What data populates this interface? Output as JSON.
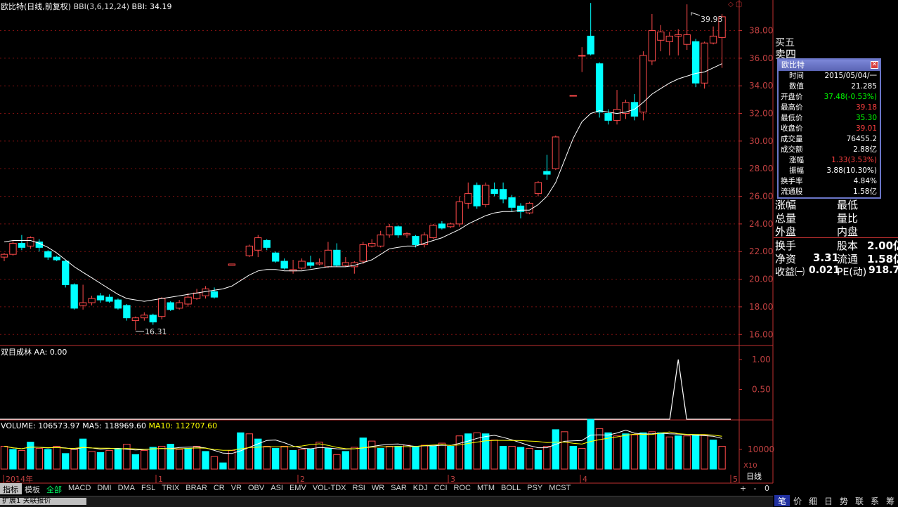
{
  "header": {
    "stock_name": "欧比特",
    "period": "(日线,前复权)",
    "indicator": "BBI(3,6,12,24)",
    "indicator_value": "BBI: 34.19"
  },
  "colors": {
    "up": "#ff4a4a",
    "down": "#00ffff",
    "grid": "#7a1010",
    "axis": "#c03030",
    "line": "#ffffff",
    "ma10": "#ffff00"
  },
  "price_chart": {
    "y_ticks": [
      "16.00",
      "18.00",
      "20.00",
      "22.00",
      "24.00",
      "26.00",
      "28.00",
      "30.00",
      "32.00",
      "34.00",
      "36.00",
      "38.00"
    ],
    "y_range": [
      15.2,
      39.4
    ],
    "high_label": "39.93",
    "low_label": "16.31"
  },
  "aa_panel": {
    "title": "双目成林",
    "value": "AA: 0.00",
    "y_ticks": [
      "1.00",
      "0.50"
    ]
  },
  "volume_panel": {
    "volume": "VOLUME: 106573.97",
    "ma5": "MA5: 118969.60",
    "ma10": "MA10: 112707.60",
    "y_tick": "10000",
    "unit": "X10"
  },
  "x_axis": {
    "labels": [
      "2014年",
      "1",
      "2",
      "3",
      "4",
      "5"
    ],
    "period_label": "日线"
  },
  "tabs": [
    "指标",
    "模板",
    "全部",
    "MACD",
    "DMI",
    "DMA",
    "FSL",
    "TRIX",
    "BRAR",
    "CR",
    "VR",
    "OBV",
    "ASI",
    "EMV",
    "VOL-TDX",
    "RSI",
    "WR",
    "SAR",
    "KDJ",
    "CCI",
    "ROC",
    "MTM",
    "BOLL",
    "PSY",
    "MCST"
  ],
  "zoom_buttons": [
    "+",
    "-",
    "0"
  ],
  "bottom_tabs": [
    "笔",
    "价",
    "细",
    "日",
    "势",
    "联",
    "系",
    "筹"
  ],
  "status_left": "扩展1",
  "status_left2": "关联报价",
  "right_panel": {
    "partial_top1": "买五",
    "partial_top2": "卖四",
    "rows": [
      {
        "l": "涨幅",
        "r": "最低"
      },
      {
        "l": "总量",
        "r": "量比"
      },
      {
        "l": "外盘",
        "r": "内盘"
      }
    ],
    "huanshou": {
      "l": "换手",
      "r_label": "股本",
      "r_val": "2.00亿"
    },
    "jingzi": {
      "l": "净资",
      "l_val": "3.31",
      "r_label": "流通",
      "r_val": "1.58亿"
    },
    "shouyi": {
      "l": "收益㈠",
      "l_val": "0.021",
      "r_label": "PE(动)",
      "r_val": "918.7"
    }
  },
  "popup": {
    "title": "欧比特",
    "rows": [
      {
        "label": "时间",
        "value": "2015/05/04/一",
        "color": "#ffffff"
      },
      {
        "label": "数值",
        "value": "21.285",
        "color": "#ffffff"
      },
      {
        "label": "开盘价",
        "value": "37.48(-0.53%)",
        "color": "#00ff00"
      },
      {
        "label": "最高价",
        "value": "39.18",
        "color": "#ff4040"
      },
      {
        "label": "最低价",
        "value": "35.30",
        "color": "#00ff00"
      },
      {
        "label": "收盘价",
        "value": "39.01",
        "color": "#ff4040"
      },
      {
        "label": "成交量",
        "value": "76455.2",
        "color": "#ffffff"
      },
      {
        "label": "成交额",
        "value": "2.88亿",
        "color": "#ffffff"
      },
      {
        "label": "涨幅",
        "value": "1.33(3.53%)",
        "color": "#ff4040"
      },
      {
        "label": "振幅",
        "value": "3.88(10.30%)",
        "color": "#ffffff"
      },
      {
        "label": "换手率",
        "value": "4.84%",
        "color": "#ffffff"
      },
      {
        "label": "流通股",
        "value": "1.58亿",
        "color": "#ffffff"
      }
    ]
  },
  "chart_data": {
    "type": "candlestick",
    "candles": [
      [
        21.6,
        21.8,
        21.3,
        21.9
      ],
      [
        21.8,
        22.6,
        21.7,
        22.8
      ],
      [
        22.6,
        22.3,
        22.1,
        23.2
      ],
      [
        22.4,
        23.0,
        22.2,
        23.1
      ],
      [
        22.7,
        22.3,
        22.0,
        22.9
      ],
      [
        22.0,
        21.6,
        21.4,
        22.1
      ],
      [
        21.6,
        21.4,
        21.3,
        21.7
      ],
      [
        21.3,
        19.6,
        19.4,
        21.4
      ],
      [
        19.6,
        17.9,
        17.8,
        19.7
      ],
      [
        18.1,
        18.3,
        17.8,
        19.6
      ],
      [
        18.3,
        18.6,
        18.1,
        18.8
      ],
      [
        18.8,
        18.5,
        18.3,
        19.0
      ],
      [
        18.7,
        18.4,
        18.3,
        18.9
      ],
      [
        18.5,
        17.9,
        17.8,
        18.6
      ],
      [
        18.1,
        17.2,
        17.0,
        18.2
      ],
      [
        17.0,
        17.2,
        16.3,
        17.3
      ],
      [
        17.2,
        17.4,
        17.0,
        17.6
      ],
      [
        17.4,
        16.9,
        16.7,
        17.5
      ],
      [
        17.3,
        18.6,
        17.1,
        18.7
      ],
      [
        18.3,
        17.8,
        17.7,
        18.4
      ],
      [
        17.9,
        18.3,
        17.8,
        18.5
      ],
      [
        18.2,
        18.7,
        18.0,
        19.0
      ],
      [
        18.6,
        19.0,
        18.5,
        19.3
      ],
      [
        18.8,
        19.3,
        18.6,
        19.5
      ],
      [
        19.1,
        18.7,
        18.6,
        19.4
      ],
      [
        null,
        null,
        null,
        null
      ],
      [
        21.0,
        21.1,
        21.0,
        21.1
      ],
      [
        null,
        null,
        null,
        null
      ],
      [
        21.7,
        22.4,
        21.6,
        22.5
      ],
      [
        22.1,
        23.0,
        21.6,
        23.2
      ],
      [
        22.8,
        22.3,
        22.1,
        22.9
      ],
      [
        21.9,
        21.3,
        21.2,
        22.0
      ],
      [
        21.3,
        20.8,
        20.7,
        21.5
      ],
      [
        20.6,
        20.7,
        20.4,
        21.4
      ],
      [
        20.8,
        21.3,
        20.7,
        21.5
      ],
      [
        21.2,
        21.0,
        20.8,
        21.7
      ],
      [
        21.1,
        21.2,
        21.0,
        21.5
      ],
      [
        20.9,
        22.1,
        20.8,
        22.7
      ],
      [
        22.1,
        21.0,
        20.9,
        22.6
      ],
      [
        21.0,
        21.2,
        20.9,
        21.6
      ],
      [
        20.9,
        21.2,
        20.4,
        21.3
      ],
      [
        21.3,
        22.5,
        21.1,
        22.7
      ],
      [
        22.4,
        22.6,
        22.3,
        22.9
      ],
      [
        22.4,
        23.2,
        22.3,
        23.5
      ],
      [
        23.2,
        23.8,
        23.0,
        24.0
      ],
      [
        23.8,
        23.2,
        23.0,
        23.9
      ],
      [
        23.2,
        23.3,
        23.0,
        23.4
      ],
      [
        23.1,
        22.5,
        22.3,
        23.2
      ],
      [
        22.5,
        23.2,
        22.3,
        23.4
      ],
      [
        23.0,
        23.9,
        22.9,
        24.0
      ],
      [
        24.0,
        23.7,
        23.6,
        24.2
      ],
      [
        23.8,
        24.0,
        23.7,
        24.1
      ],
      [
        24.0,
        25.6,
        23.8,
        26.0
      ],
      [
        25.5,
        26.2,
        25.1,
        27.0
      ],
      [
        26.8,
        25.3,
        25.1,
        27.0
      ],
      [
        25.4,
        26.8,
        25.2,
        27.0
      ],
      [
        26.5,
        26.2,
        26.0,
        27.0
      ],
      [
        26.5,
        25.8,
        25.5,
        27.0
      ],
      [
        25.9,
        25.2,
        24.9,
        26.1
      ],
      [
        25.3,
        24.9,
        24.4,
        25.5
      ],
      [
        24.8,
        25.5,
        24.7,
        25.6
      ],
      [
        26.2,
        27.0,
        26.0,
        27.1
      ],
      [
        27.8,
        27.6,
        27.2,
        29.0
      ],
      [
        28.0,
        30.3,
        27.9,
        30.4
      ],
      [
        null,
        null,
        null,
        null
      ],
      [
        33.3,
        33.3,
        33.3,
        33.3
      ],
      [
        36.2,
        36.2,
        35.0,
        36.8
      ],
      [
        37.6,
        36.3,
        36.2,
        40.0
      ],
      [
        35.6,
        32.1,
        31.7,
        35.7
      ],
      [
        32.0,
        31.5,
        31.2,
        32.3
      ],
      [
        31.5,
        32.3,
        31.2,
        33.7
      ],
      [
        32.0,
        32.8,
        31.6,
        33.0
      ],
      [
        32.8,
        31.8,
        31.5,
        33.4
      ],
      [
        32.1,
        36.2,
        31.5,
        36.5
      ],
      [
        35.8,
        38.0,
        35.5,
        39.2
      ],
      [
        37.3,
        37.9,
        36.5,
        38.4
      ],
      [
        37.2,
        37.6,
        36.2,
        37.9
      ],
      [
        37.6,
        37.7,
        36.2,
        38.1
      ],
      [
        37.0,
        37.7,
        36.6,
        39.9
      ],
      [
        37.2,
        34.2,
        33.9,
        37.4
      ],
      [
        34.2,
        37.1,
        33.8,
        37.2
      ],
      [
        37.1,
        37.6,
        37.0,
        38.3
      ],
      [
        37.5,
        39.0,
        35.3,
        39.2
      ]
    ],
    "bbi": [
      22.7,
      22.8,
      22.8,
      22.8,
      22.6,
      22.3,
      21.9,
      21.4,
      20.9,
      20.5,
      20.1,
      19.7,
      19.3,
      18.9,
      18.6,
      18.5,
      18.4,
      18.5,
      18.6,
      18.7,
      18.8,
      18.9,
      19.0,
      19.1,
      19.2,
      19.3,
      19.5,
      19.9,
      20.3,
      20.6,
      20.7,
      20.7,
      20.6,
      20.6,
      20.6,
      20.7,
      20.8,
      20.9,
      20.9,
      20.9,
      21.0,
      21.2,
      21.4,
      21.8,
      22.2,
      22.3,
      22.4,
      22.4,
      22.6,
      22.8,
      23.0,
      23.3,
      23.6,
      24.0,
      24.3,
      24.6,
      24.8,
      24.9,
      24.9,
      25.0,
      25.0,
      25.4,
      26.0,
      27.0,
      28.6,
      30.2,
      31.4,
      32.0,
      32.2,
      32.1,
      32.0,
      32.1,
      32.3,
      32.8,
      33.4,
      33.8,
      34.2,
      34.5,
      34.7,
      34.9,
      35.0,
      35.3,
      35.6
    ],
    "aa": {
      "spike_index": 77,
      "spike_value": 1.0
    },
    "volume": [
      [
        110,
        0
      ],
      [
        95,
        1
      ],
      [
        90,
        0
      ],
      [
        130,
        1
      ],
      [
        100,
        0
      ],
      [
        95,
        1
      ],
      [
        110,
        0
      ],
      [
        75,
        1
      ],
      [
        95,
        0
      ],
      [
        145,
        1
      ],
      [
        85,
        0
      ],
      [
        80,
        1
      ],
      [
        90,
        0
      ],
      [
        100,
        1
      ],
      [
        120,
        0
      ],
      [
        70,
        1
      ],
      [
        90,
        0
      ],
      [
        105,
        1
      ],
      [
        110,
        0
      ],
      [
        120,
        1
      ],
      [
        95,
        0
      ],
      [
        100,
        1
      ],
      [
        110,
        0
      ],
      [
        85,
        1
      ],
      [
        60,
        0
      ],
      [
        30,
        1
      ],
      [
        90,
        0
      ],
      [
        175,
        1
      ],
      [
        170,
        0
      ],
      [
        145,
        1
      ],
      [
        110,
        0
      ],
      [
        100,
        1
      ],
      [
        110,
        0
      ],
      [
        90,
        1
      ],
      [
        95,
        0
      ],
      [
        95,
        1
      ],
      [
        130,
        0
      ],
      [
        100,
        1
      ],
      [
        70,
        0
      ],
      [
        85,
        1
      ],
      [
        105,
        0
      ],
      [
        150,
        1
      ],
      [
        135,
        0
      ],
      [
        100,
        1
      ],
      [
        110,
        0
      ],
      [
        110,
        1
      ],
      [
        115,
        0
      ],
      [
        110,
        1
      ],
      [
        115,
        0
      ],
      [
        110,
        1
      ],
      [
        125,
        0
      ],
      [
        110,
        1
      ],
      [
        160,
        0
      ],
      [
        170,
        1
      ],
      [
        175,
        0
      ],
      [
        170,
        1
      ],
      [
        140,
        0
      ],
      [
        110,
        1
      ],
      [
        110,
        0
      ],
      [
        105,
        1
      ],
      [
        100,
        0
      ],
      [
        90,
        1
      ],
      [
        110,
        0
      ],
      [
        190,
        1
      ],
      [
        180,
        0
      ],
      [
        110,
        1
      ],
      [
        100,
        0
      ],
      [
        240,
        1
      ],
      [
        195,
        0
      ],
      [
        175,
        1
      ],
      [
        160,
        0
      ],
      [
        170,
        1
      ],
      [
        165,
        0
      ],
      [
        175,
        1
      ],
      [
        180,
        0
      ],
      [
        175,
        1
      ],
      [
        155,
        0
      ],
      [
        160,
        1
      ],
      [
        160,
        0
      ],
      [
        165,
        1
      ],
      [
        165,
        0
      ],
      [
        140,
        1
      ],
      [
        110,
        0
      ]
    ],
    "volume_max": 260
  }
}
